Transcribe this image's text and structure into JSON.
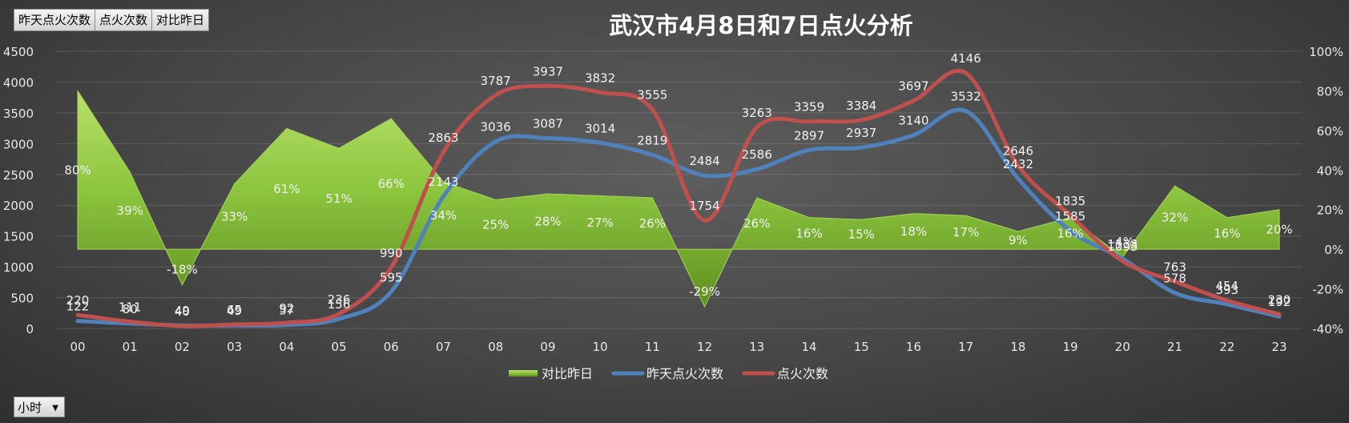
{
  "field_buttons": [
    "昨天点火次数",
    "点火次数",
    "对比昨日"
  ],
  "axis_field_button": {
    "label": "小时",
    "caret": "▼"
  },
  "chart_data": {
    "type": "combo",
    "title": "武汉市4月8日和7日点火分析",
    "categories": [
      "00",
      "01",
      "02",
      "03",
      "04",
      "05",
      "06",
      "07",
      "08",
      "09",
      "10",
      "11",
      "12",
      "13",
      "14",
      "15",
      "16",
      "17",
      "18",
      "19",
      "20",
      "21",
      "22",
      "23"
    ],
    "y_left": {
      "min": 0,
      "max": 4500,
      "ticks": [
        0,
        500,
        1000,
        1500,
        2000,
        2500,
        3000,
        3500,
        4000,
        4500
      ]
    },
    "y_right": {
      "min": -40,
      "max": 100,
      "ticks": [
        "-40%",
        "-20%",
        "0%",
        "20%",
        "40%",
        "60%",
        "80%",
        "100%"
      ],
      "tick_values": [
        -40,
        -20,
        0,
        20,
        40,
        60,
        80,
        100
      ]
    },
    "grid": true,
    "legend_position": "bottom",
    "series": [
      {
        "name": "对比昨日",
        "type": "area",
        "axis": "right",
        "color": "#8dc63f",
        "values": [
          80,
          39,
          -18,
          33,
          61,
          51,
          66,
          34,
          25,
          28,
          27,
          26,
          -29,
          26,
          16,
          15,
          18,
          17,
          9,
          16,
          -4,
          32,
          16,
          20
        ],
        "labels": [
          "80%",
          "39%",
          "-18%",
          "33%",
          "61%",
          "51%",
          "66%",
          "34%",
          "25%",
          "28%",
          "27%",
          "26%",
          "-29%",
          "26%",
          "16%",
          "15%",
          "18%",
          "17%",
          "9%",
          "16%",
          "-4%",
          "32%",
          "16%",
          "20%"
        ]
      },
      {
        "name": "昨天点火次数",
        "type": "line",
        "axis": "left",
        "color": "#4f81bd",
        "values": [
          122,
          80,
          49,
          49,
          57,
          156,
          595,
          2143,
          3036,
          3087,
          3014,
          2819,
          2484,
          2586,
          2897,
          2937,
          3140,
          3532,
          2432,
          1585,
          1133,
          578,
          393,
          192
        ]
      },
      {
        "name": "点火次数",
        "type": "line",
        "axis": "left",
        "color": "#c0504d",
        "values": [
          220,
          111,
          40,
          65,
          92,
          236,
          990,
          2863,
          3787,
          3937,
          3832,
          3555,
          1754,
          3263,
          3359,
          3384,
          3697,
          4146,
          2646,
          1835,
          1093,
          763,
          454,
          230
        ]
      }
    ]
  }
}
